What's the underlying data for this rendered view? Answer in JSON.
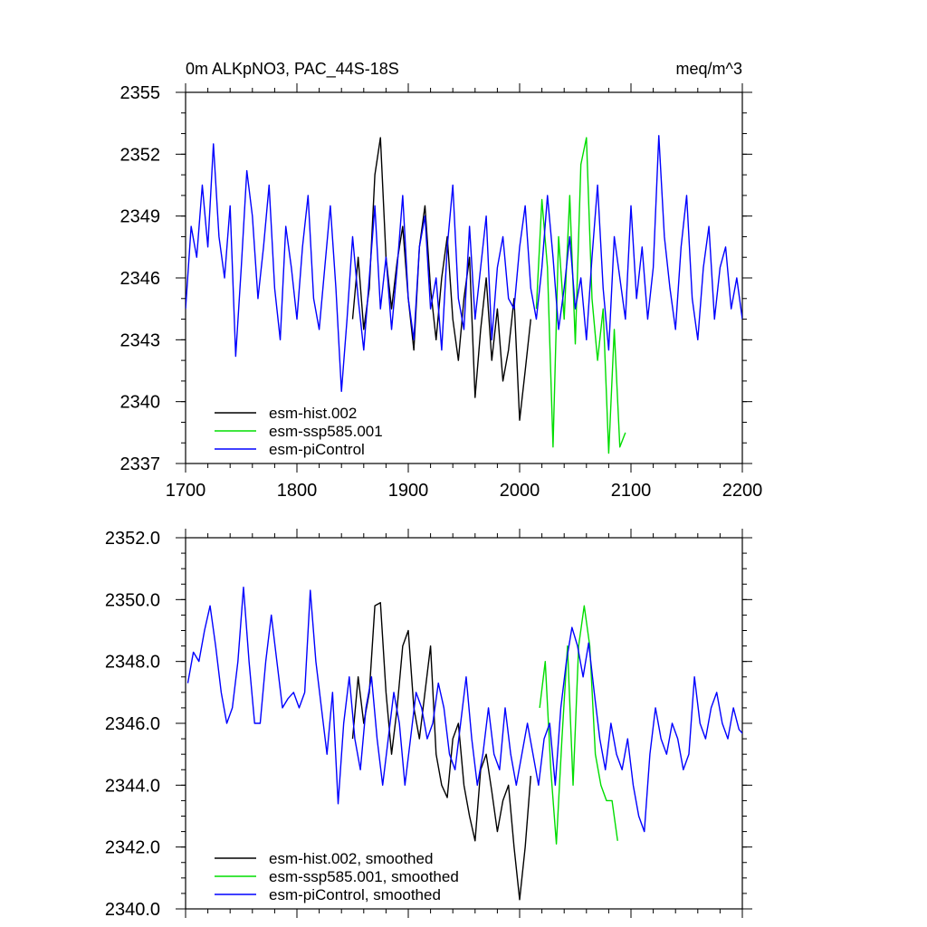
{
  "chart_data": [
    {
      "type": "line",
      "title": "0m ALKpNO3, PAC_44S-18S",
      "units": "meq/m^3",
      "xlabel": "",
      "ylabel": "",
      "xlim": [
        1700,
        2200
      ],
      "ylim": [
        2337,
        2355
      ],
      "x_ticks": [
        1700,
        1800,
        1900,
        2000,
        2100,
        2200
      ],
      "x_tick_labels": [
        "1700",
        "1800",
        "1900",
        "2000",
        "2100",
        "2200"
      ],
      "y_ticks": [
        2337,
        2340,
        2343,
        2346,
        2349,
        2352,
        2355
      ],
      "y_tick_labels": [
        "2337",
        "2340",
        "2343",
        "2346",
        "2349",
        "2352",
        "2355"
      ],
      "legend_position": "bottom-left",
      "series": [
        {
          "name": "esm-hist.002",
          "color": "#000000",
          "x_start": 1850,
          "x_step": 5,
          "values": [
            2344.0,
            2347.0,
            2343.5,
            2345.5,
            2351.0,
            2352.8,
            2347.0,
            2344.5,
            2346.8,
            2348.5,
            2345.0,
            2342.5,
            2347.5,
            2349.5,
            2345.5,
            2343.0,
            2346.0,
            2348.0,
            2344.0,
            2342.0,
            2345.0,
            2347.0,
            2340.2,
            2343.5,
            2346.0,
            2342.0,
            2344.5,
            2341.0,
            2342.5,
            2345.0,
            2339.1,
            2341.5,
            2344.0
          ]
        },
        {
          "name": "esm-ssp585.001",
          "color": "#00dd00",
          "x_start": 2015,
          "x_step": 5,
          "values": [
            2344.5,
            2349.8,
            2346.5,
            2337.8,
            2348.0,
            2344.0,
            2350.0,
            2342.8,
            2351.5,
            2352.8,
            2345.0,
            2342.0,
            2344.5,
            2337.5,
            2343.5,
            2337.8,
            2338.5
          ]
        },
        {
          "name": "esm-piControl",
          "color": "#0000ff",
          "x_start": 1700,
          "x_step": 5,
          "values": [
            2344.5,
            2348.5,
            2347.0,
            2350.5,
            2347.5,
            2352.5,
            2348.0,
            2346.0,
            2349.5,
            2342.2,
            2346.5,
            2351.2,
            2349.0,
            2345.0,
            2347.5,
            2350.5,
            2345.5,
            2343.0,
            2348.5,
            2346.5,
            2344.0,
            2347.5,
            2350.0,
            2345.0,
            2343.5,
            2346.5,
            2349.5,
            2345.5,
            2340.5,
            2344.0,
            2348.0,
            2345.0,
            2342.5,
            2346.0,
            2349.5,
            2344.5,
            2347.0,
            2343.5,
            2346.5,
            2350.0,
            2345.0,
            2343.0,
            2347.5,
            2349.0,
            2344.5,
            2346.0,
            2342.5,
            2347.5,
            2350.5,
            2345.0,
            2343.5,
            2348.5,
            2344.0,
            2346.5,
            2349.0,
            2343.0,
            2346.5,
            2348.0,
            2345.0,
            2344.5,
            2347.5,
            2349.5,
            2345.5,
            2344.0,
            2346.5,
            2350.0,
            2347.0,
            2343.5,
            2345.5,
            2348.0,
            2344.5,
            2346.0,
            2343.0,
            2347.0,
            2350.5,
            2345.5,
            2342.5,
            2348.0,
            2346.0,
            2344.0,
            2349.5,
            2345.0,
            2347.5,
            2344.0,
            2346.5,
            2352.9,
            2348.0,
            2345.5,
            2343.5,
            2347.5,
            2350.0,
            2345.0,
            2343.0,
            2346.5,
            2348.5,
            2344.0,
            2346.5,
            2347.5,
            2344.5,
            2346.0,
            2344.0
          ]
        }
      ]
    },
    {
      "type": "line",
      "title": "",
      "xlabel": "",
      "ylabel": "",
      "xlim": [
        1700,
        2200
      ],
      "ylim": [
        2340.0,
        2352.0
      ],
      "y_ticks": [
        2340.0,
        2342.0,
        2344.0,
        2346.0,
        2348.0,
        2350.0,
        2352.0
      ],
      "y_tick_labels": [
        "2340.0",
        "2342.0",
        "2344.0",
        "2346.0",
        "2348.0",
        "2350.0",
        "2352.0"
      ],
      "legend_position": "bottom-left",
      "series": [
        {
          "name": "esm-hist.002, smoothed",
          "color": "#000000",
          "x_start": 1850,
          "x_step": 5,
          "values": [
            2345.5,
            2347.5,
            2346.0,
            2347.0,
            2349.8,
            2349.9,
            2347.0,
            2345.0,
            2346.5,
            2348.5,
            2349.0,
            2346.5,
            2345.5,
            2347.0,
            2348.5,
            2345.0,
            2344.0,
            2343.6,
            2345.5,
            2346.0,
            2344.0,
            2343.0,
            2342.2,
            2344.5,
            2345.0,
            2343.8,
            2342.5,
            2343.5,
            2344.0,
            2342.0,
            2340.3,
            2342.0,
            2344.3
          ]
        },
        {
          "name": "esm-ssp585.001, smoothed",
          "color": "#00dd00",
          "x_start": 2018,
          "x_step": 5,
          "values": [
            2346.5,
            2348.0,
            2344.5,
            2342.1,
            2345.5,
            2348.5,
            2344.0,
            2348.5,
            2349.8,
            2348.5,
            2345.0,
            2344.0,
            2343.5,
            2343.5,
            2342.2
          ]
        },
        {
          "name": "esm-piControl, smoothed",
          "color": "#0000ff",
          "x_start": 1702,
          "x_step": 5,
          "values": [
            2347.3,
            2348.3,
            2348.0,
            2349.0,
            2349.8,
            2348.5,
            2347.0,
            2346.0,
            2346.5,
            2348.0,
            2350.4,
            2348.0,
            2346.0,
            2346.0,
            2348.0,
            2349.5,
            2348.0,
            2346.5,
            2346.8,
            2347.0,
            2346.5,
            2347.0,
            2350.3,
            2348.0,
            2346.5,
            2345.0,
            2347.0,
            2343.4,
            2346.0,
            2347.5,
            2345.5,
            2344.5,
            2346.5,
            2347.5,
            2345.5,
            2344.0,
            2345.5,
            2347.0,
            2346.0,
            2344.0,
            2345.5,
            2347.0,
            2346.5,
            2345.5,
            2346.0,
            2347.3,
            2346.5,
            2345.0,
            2344.5,
            2346.0,
            2347.5,
            2345.5,
            2344.0,
            2345.0,
            2346.5,
            2345.0,
            2344.5,
            2346.5,
            2345.0,
            2344.0,
            2345.0,
            2346.0,
            2345.0,
            2344.0,
            2345.5,
            2346.0,
            2344.0,
            2346.5,
            2348.0,
            2349.1,
            2348.5,
            2347.5,
            2348.6,
            2347.0,
            2345.5,
            2344.5,
            2346.0,
            2345.0,
            2344.5,
            2345.5,
            2344.0,
            2343.0,
            2342.5,
            2345.0,
            2346.5,
            2345.5,
            2345.0,
            2346.0,
            2345.5,
            2344.5,
            2345.0,
            2347.5,
            2346.0,
            2345.5,
            2346.5,
            2347.0,
            2346.0,
            2345.5,
            2346.5,
            2345.8,
            2345.6
          ]
        }
      ]
    }
  ]
}
